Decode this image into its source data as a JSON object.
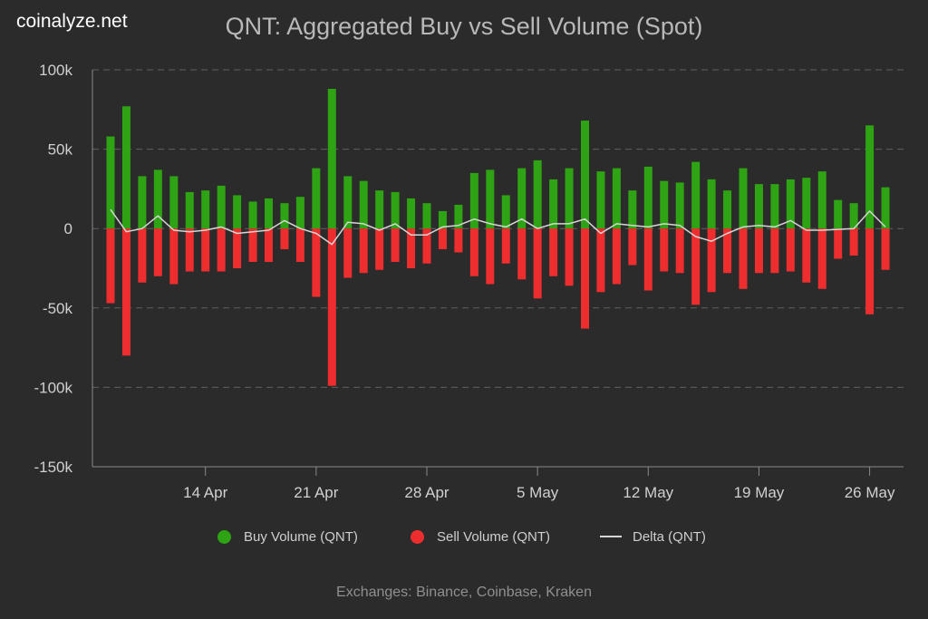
{
  "brand": "coinalyze.net",
  "footer": "Exchanges: Binance, Coinbase, Kraken",
  "colors": {
    "buy": "#2ea313",
    "sell": "#ee2e2e",
    "delta": "#d6d6d6",
    "grid": "#606060",
    "tick_text": "#d0d0d0",
    "background": "#2b2b2b"
  },
  "chart_data": {
    "type": "bar",
    "title": "QNT: Aggregated Buy vs Sell Volume (Spot)",
    "ylim": [
      -150000,
      100000
    ],
    "y_ticks": [
      {
        "value": 100000,
        "label": "100k"
      },
      {
        "value": 50000,
        "label": "50k"
      },
      {
        "value": 0,
        "label": "0"
      },
      {
        "value": -50000,
        "label": "-50k"
      },
      {
        "value": -100000,
        "label": "-100k"
      },
      {
        "value": -150000,
        "label": "-150k"
      }
    ],
    "x_ticks": [
      {
        "index": 6,
        "label": "14 Apr"
      },
      {
        "index": 13,
        "label": "21 Apr"
      },
      {
        "index": 20,
        "label": "28 Apr"
      },
      {
        "index": 27,
        "label": "5 May"
      },
      {
        "index": 34,
        "label": "12 May"
      },
      {
        "index": 41,
        "label": "19 May"
      },
      {
        "index": 48,
        "label": "26 May"
      }
    ],
    "grid": "horizontal dashed",
    "legend_position": "bottom",
    "categories": [
      "8 Apr",
      "9 Apr",
      "10 Apr",
      "11 Apr",
      "12 Apr",
      "13 Apr",
      "14 Apr",
      "15 Apr",
      "16 Apr",
      "17 Apr",
      "18 Apr",
      "19 Apr",
      "20 Apr",
      "21 Apr",
      "22 Apr",
      "23 Apr",
      "24 Apr",
      "25 Apr",
      "26 Apr",
      "27 Apr",
      "28 Apr",
      "29 Apr",
      "30 Apr",
      "1 May",
      "2 May",
      "3 May",
      "4 May",
      "5 May",
      "6 May",
      "7 May",
      "8 May",
      "9 May",
      "10 May",
      "11 May",
      "12 May",
      "13 May",
      "14 May",
      "15 May",
      "16 May",
      "17 May",
      "18 May",
      "19 May",
      "20 May",
      "21 May",
      "22 May",
      "23 May",
      "24 May",
      "25 May",
      "26 May",
      "27 May"
    ],
    "series": [
      {
        "name": "Buy Volume (QNT)",
        "values": [
          58000,
          77000,
          33000,
          37000,
          33000,
          23000,
          24000,
          27000,
          21000,
          17000,
          19000,
          16000,
          20000,
          38000,
          88000,
          33000,
          30000,
          24000,
          23000,
          19000,
          16000,
          11000,
          15000,
          35000,
          37000,
          21000,
          38000,
          43000,
          31000,
          38000,
          68000,
          36000,
          38000,
          24000,
          39000,
          30000,
          29000,
          42000,
          31000,
          24000,
          38000,
          28000,
          28000,
          31000,
          32000,
          36000,
          18000,
          16000,
          65000,
          26000
        ]
      },
      {
        "name": "Sell Volume (QNT)",
        "values": [
          -47000,
          -80000,
          -34000,
          -30000,
          -35000,
          -27000,
          -27000,
          -27000,
          -25000,
          -21000,
          -21000,
          -13000,
          -21000,
          -43000,
          -99000,
          -31000,
          -28000,
          -26000,
          -21000,
          -25000,
          -22000,
          -13000,
          -15000,
          -30000,
          -35000,
          -22000,
          -32000,
          -44000,
          -30000,
          -36000,
          -63000,
          -40000,
          -35000,
          -23000,
          -39000,
          -27000,
          -28000,
          -48000,
          -40000,
          -28000,
          -38000,
          -28000,
          -28000,
          -27000,
          -34000,
          -38000,
          -19000,
          -17000,
          -54000,
          -26000
        ]
      },
      {
        "name": "Delta (QNT)",
        "values": [
          12000,
          -2000,
          0,
          8000,
          -1000,
          -2000,
          -1000,
          1000,
          -3000,
          -2000,
          -1000,
          5000,
          0,
          -3000,
          -10000,
          4000,
          3000,
          -1000,
          3000,
          -4000,
          -4000,
          1000,
          2000,
          6000,
          3000,
          1000,
          6000,
          0,
          3000,
          3000,
          6000,
          -3000,
          3000,
          2000,
          1000,
          3000,
          2000,
          -5000,
          -8000,
          -3000,
          1000,
          2000,
          1000,
          5000,
          -1000,
          -1000,
          -500,
          0,
          11000,
          1000
        ]
      }
    ]
  }
}
